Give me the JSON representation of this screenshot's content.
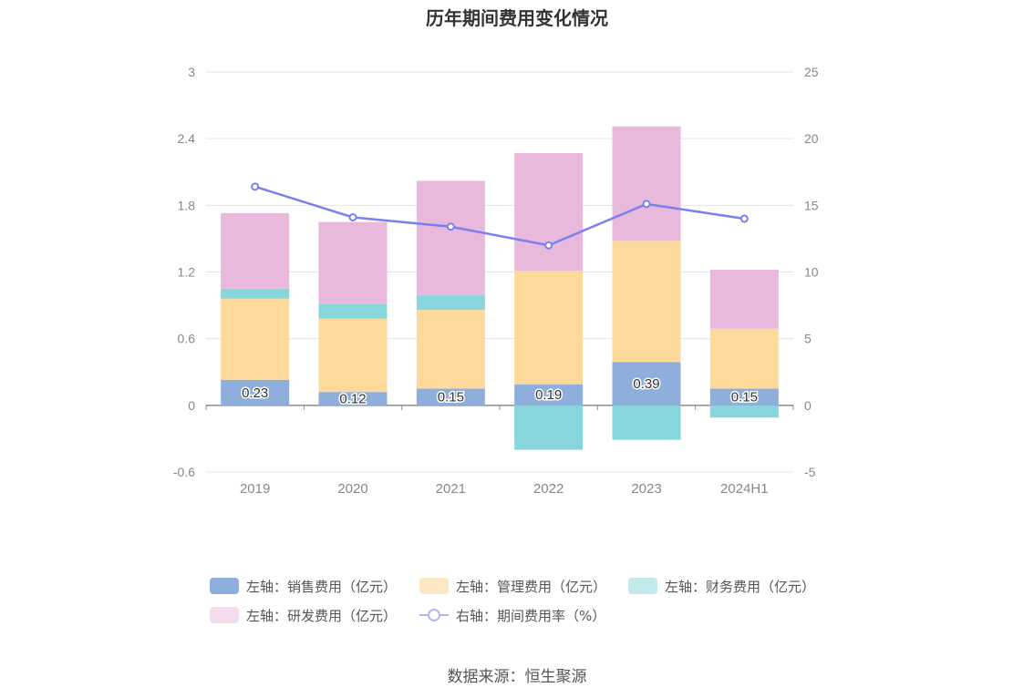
{
  "chart_data": {
    "type": "bar",
    "title": "历年期间费用变化情况",
    "categories": [
      "2019",
      "2020",
      "2021",
      "2022",
      "2023",
      "2024H1"
    ],
    "stacked": true,
    "left_axis": {
      "ticks": [
        "3",
        "2.4",
        "1.8",
        "1.2",
        "0.6",
        "0",
        "-0.6"
      ],
      "ylim": [
        -0.6,
        3
      ]
    },
    "right_axis": {
      "ticks": [
        "25",
        "20",
        "15",
        "10",
        "5",
        "0",
        "-5"
      ],
      "ylim": [
        -5,
        25
      ]
    },
    "series": [
      {
        "name": "左轴：销售费用（亿元）",
        "axis": "left",
        "type": "bar",
        "color": "#8eaedc",
        "values": [
          0.23,
          0.12,
          0.15,
          0.19,
          0.39,
          0.15
        ],
        "labels": [
          "0.23",
          "0.12",
          "0.15",
          "0.19",
          "0.39",
          "0.15"
        ]
      },
      {
        "name": "左轴：管理费用（亿元）",
        "axis": "left",
        "type": "bar",
        "color": "#fdd99b",
        "values": [
          0.73,
          0.66,
          0.71,
          1.02,
          1.09,
          0.54
        ]
      },
      {
        "name": "左轴：财务费用（亿元）",
        "axis": "left",
        "type": "bar",
        "color": "#86d6db",
        "values": [
          0.09,
          0.13,
          0.13,
          -0.4,
          -0.31,
          -0.11
        ]
      },
      {
        "name": "左轴：研发费用（亿元）",
        "axis": "left",
        "type": "bar",
        "color": "#e8b9da",
        "values": [
          0.68,
          0.74,
          1.03,
          1.06,
          1.03,
          0.53
        ]
      },
      {
        "name": "右轴：期间费用率（%）",
        "axis": "right",
        "type": "line",
        "color": "#7b7ff0",
        "values": [
          16.4,
          14.1,
          13.4,
          12.0,
          15.1,
          14.0
        ]
      }
    ],
    "grid": true,
    "legend_position": "bottom"
  },
  "source_text": "数据来源：恒生聚源"
}
